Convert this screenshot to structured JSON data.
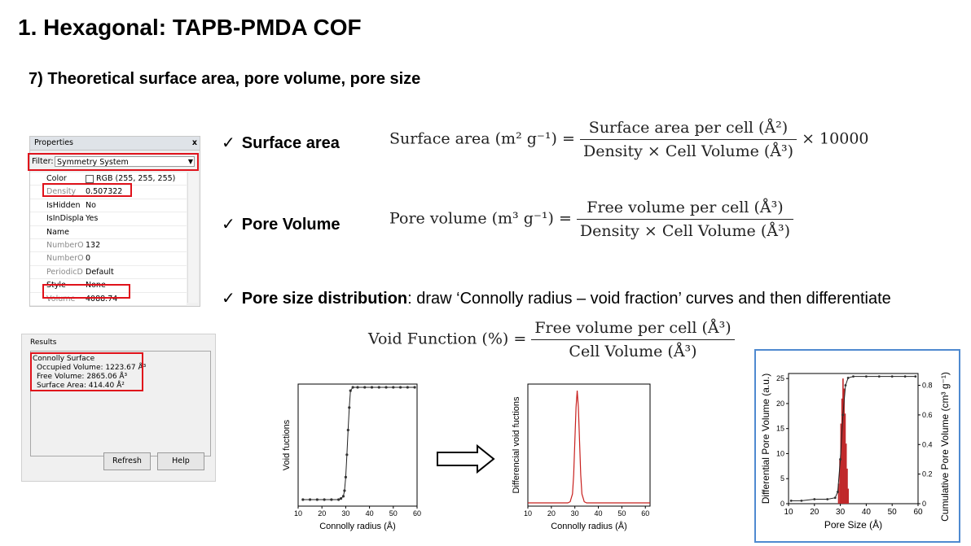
{
  "slide": {
    "title": "1. Hexagonal: TAPB-PMDA COF",
    "subtitle": "7) Theoretical surface area, pore volume, pore size"
  },
  "properties_panel": {
    "title": "Properties",
    "close": "x",
    "filter_label": "Filter:",
    "filter_value": "Symmetry System",
    "rows": [
      {
        "key": "Color",
        "value": "RGB (255, 255, 255)"
      },
      {
        "key": "Density",
        "value": "0.507322"
      },
      {
        "key": "IsHidden",
        "value": "No"
      },
      {
        "key": "IsInDisplay",
        "value": "Yes"
      },
      {
        "key": "Name",
        "value": ""
      },
      {
        "key": "NumberO",
        "value": "132"
      },
      {
        "key": "NumberO",
        "value": "0"
      },
      {
        "key": "PeriodicDi",
        "value": "Default"
      },
      {
        "key": "Style",
        "value": "None"
      },
      {
        "key": "Volume",
        "value": "4088.74"
      }
    ]
  },
  "results_panel": {
    "label": "Results",
    "lines": [
      "Connolly Surface",
      "Occupied Volume: 1223.67 Å³",
      "Free Volume: 2865.06 Å³",
      "Surface Area: 414.40 Å²"
    ],
    "refresh_label": "Refresh",
    "help_label": "Help"
  },
  "items": {
    "surface_area": "Surface area",
    "pore_volume": "Pore Volume",
    "pore_size": "Pore size distribution",
    "pore_size_rest": ": draw ‘Connolly radius – void fraction’ curves and then differentiate"
  },
  "equations": {
    "sa_lhs": "Surface area (m² g⁻¹) =",
    "sa_num": "Surface area per cell (Å²)",
    "sa_den": "Density × Cell Volume (Å³)",
    "sa_mult": "× 10000",
    "pv_lhs": "Pore volume (m³ g⁻¹) =",
    "pv_num": "Free volume per cell (Å³)",
    "pv_den": "Density × Cell Volume (Å³)",
    "vf_lhs": "Void Function (%) =",
    "vf_num": "Free volume per cell (Å³)",
    "vf_den": "Cell Volume (Å³)"
  },
  "chart_data": [
    {
      "type": "scatter",
      "title": "",
      "xlabel": "Connolly radius (Å)",
      "ylabel": "Void fuctions",
      "xlim": [
        10,
        60
      ],
      "x_ticks": [
        10,
        20,
        30,
        40,
        50,
        60
      ],
      "x": [
        12,
        15,
        18,
        21,
        24,
        27,
        28,
        29,
        29.5,
        30,
        30.5,
        31,
        31.5,
        32,
        33,
        35,
        38,
        41,
        44,
        47,
        50,
        53,
        56,
        59
      ],
      "y": [
        0,
        0,
        0,
        0,
        0,
        0,
        0.01,
        0.03,
        0.08,
        0.2,
        0.4,
        0.62,
        0.82,
        0.97,
        1,
        1,
        1,
        1,
        1,
        1,
        1,
        1,
        1,
        1
      ]
    },
    {
      "type": "line",
      "title": "",
      "xlabel": "Connolly radius (Å)",
      "ylabel": "Differencial void fuctions",
      "xlim": [
        10,
        62
      ],
      "x_ticks": [
        10,
        20,
        30,
        40,
        50,
        60
      ],
      "x": [
        10,
        27,
        28,
        29,
        29.5,
        30,
        30.5,
        31,
        31.5,
        32,
        32.5,
        33,
        34,
        35,
        62
      ],
      "y": [
        0,
        0,
        0.01,
        0.08,
        0.25,
        0.55,
        0.85,
        1,
        0.85,
        0.55,
        0.25,
        0.08,
        0.01,
        0,
        0
      ]
    },
    {
      "type": "bar",
      "title": "",
      "xlabel": "Pore Size (Å)",
      "ylabel": "Differential Pore Volume (a.u.)",
      "y2label": "Cumulative Pore Volume (cm³ g⁻¹)",
      "xlim": [
        10,
        60
      ],
      "ylim": [
        0,
        26
      ],
      "y2lim": [
        0,
        0.88
      ],
      "x_ticks": [
        10,
        20,
        30,
        40,
        50,
        60
      ],
      "y_ticks": [
        0,
        5,
        10,
        15,
        20,
        25
      ],
      "y2_ticks": [
        0,
        0.2,
        0.4,
        0.6,
        0.8
      ],
      "bars": {
        "x": [
          29.4,
          29.9,
          30.3,
          30.7,
          31.1,
          31.5,
          31.9,
          32.3,
          32.7,
          33.1
        ],
        "y": [
          4,
          9,
          16,
          21,
          25,
          23,
          18,
          12,
          7,
          3
        ]
      },
      "cumulative": {
        "x": [
          11,
          15,
          20,
          25,
          28,
          29,
          30,
          31,
          32,
          33,
          35,
          40,
          45,
          50,
          55,
          59
        ],
        "y": [
          0.02,
          0.02,
          0.03,
          0.03,
          0.04,
          0.08,
          0.3,
          0.6,
          0.8,
          0.85,
          0.86,
          0.86,
          0.86,
          0.86,
          0.86,
          0.86
        ]
      }
    }
  ]
}
